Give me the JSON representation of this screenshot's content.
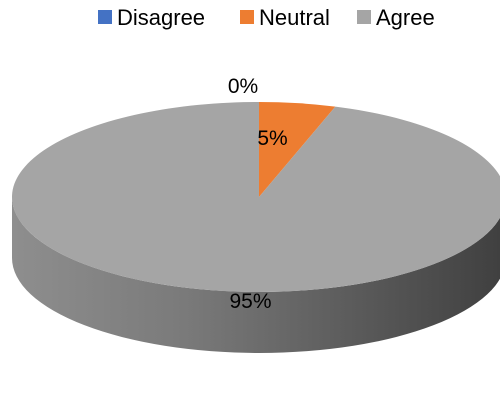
{
  "chart_data": {
    "type": "pie",
    "categories": [
      "Disagree",
      "Neutral",
      "Agree"
    ],
    "values": [
      0,
      5,
      95
    ],
    "data_labels": [
      "0%",
      "5%",
      "95%"
    ],
    "colors": [
      "#4472C4",
      "#ED7D31",
      "#A5A5A5"
    ],
    "legend_position": "top",
    "style": "3d"
  }
}
